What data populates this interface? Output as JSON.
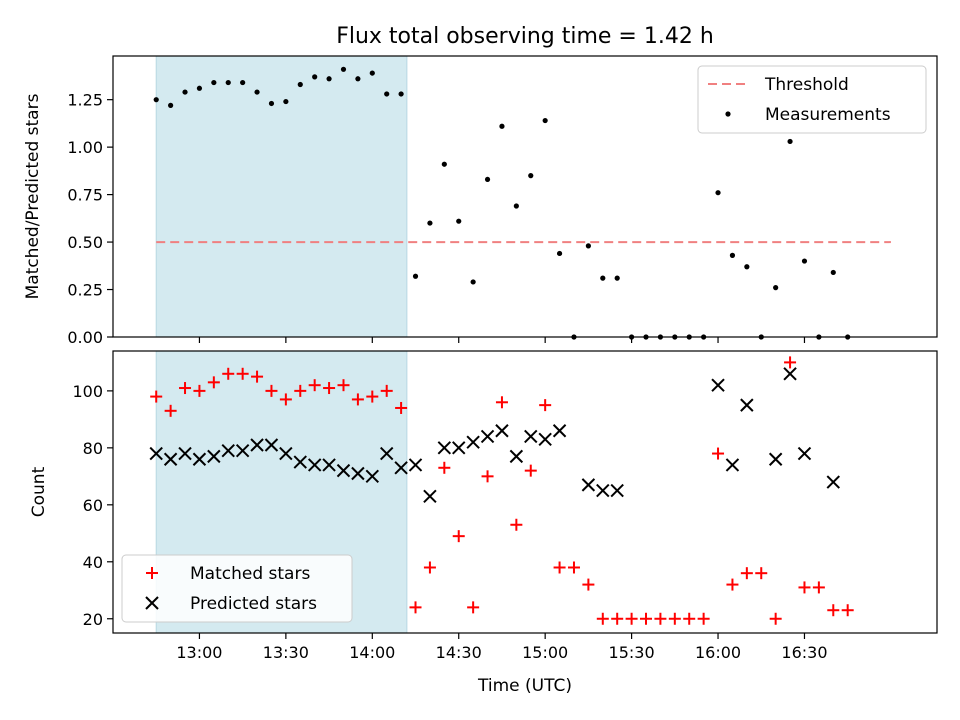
{
  "chart_data": [
    {
      "type": "scatter",
      "title": "Flux total observing time = 1.42 h",
      "xlabel": "",
      "ylabel": "Matched/Predicted stars",
      "xlim": [
        "12:30",
        "17:16"
      ],
      "ylim": [
        0,
        1.48
      ],
      "yticks": [
        "0.00",
        "0.25",
        "0.50",
        "0.75",
        "1.00",
        "1.25"
      ],
      "shaded_interval": [
        "12:45",
        "14:12"
      ],
      "shaded_color": "#d4eaf0",
      "threshold": {
        "name": "Threshold",
        "y": 0.5,
        "x_range": [
          "12:45",
          "17:00"
        ],
        "color": "#f08080"
      },
      "legend_position": "top-right",
      "series": [
        {
          "name": "Measurements",
          "color": "#000000",
          "marker": "dot",
          "x": [
            "12:45",
            "12:50",
            "12:55",
            "13:00",
            "13:05",
            "13:10",
            "13:15",
            "13:20",
            "13:25",
            "13:30",
            "13:35",
            "13:40",
            "13:45",
            "13:50",
            "13:55",
            "14:00",
            "14:05",
            "14:10",
            "14:15",
            "14:20",
            "14:25",
            "14:30",
            "14:35",
            "14:40",
            "14:45",
            "14:50",
            "14:55",
            "15:00",
            "15:05",
            "15:10",
            "15:15",
            "15:20",
            "15:25",
            "15:30",
            "15:35",
            "15:40",
            "15:45",
            "15:50",
            "15:55",
            "16:00",
            "16:05",
            "16:10",
            "16:15",
            "16:20",
            "16:25",
            "16:30",
            "16:35",
            "16:40",
            "16:45"
          ],
          "y": [
            1.25,
            1.22,
            1.29,
            1.31,
            1.34,
            1.34,
            1.34,
            1.29,
            1.23,
            1.24,
            1.33,
            1.37,
            1.36,
            1.41,
            1.36,
            1.39,
            1.28,
            1.28,
            0.32,
            0.6,
            0.91,
            0.61,
            0.29,
            0.83,
            1.11,
            0.69,
            0.85,
            1.14,
            0.44,
            0.0,
            0.48,
            0.31,
            0.31,
            0.0,
            0.0,
            0.0,
            0.0,
            0.0,
            0.0,
            0.76,
            0.43,
            0.37,
            0.0,
            0.26,
            1.03,
            0.4,
            0.0,
            0.34,
            0.0
          ]
        }
      ]
    },
    {
      "type": "scatter",
      "title": "",
      "xlabel": "Time (UTC)",
      "ylabel": "Count",
      "xlim": [
        "12:30",
        "17:16"
      ],
      "ylim": [
        15,
        114
      ],
      "yticks": [
        "20",
        "40",
        "60",
        "80",
        "100"
      ],
      "xticks": [
        "13:00",
        "13:30",
        "14:00",
        "14:30",
        "15:00",
        "15:30",
        "16:00",
        "16:30"
      ],
      "shaded_interval": [
        "12:45",
        "14:12"
      ],
      "legend_position": "lower-left",
      "series": [
        {
          "name": "Matched stars",
          "color": "#ff0000",
          "marker": "plus",
          "x": [
            "12:45",
            "12:50",
            "12:55",
            "13:00",
            "13:05",
            "13:10",
            "13:15",
            "13:20",
            "13:25",
            "13:30",
            "13:35",
            "13:40",
            "13:45",
            "13:50",
            "13:55",
            "14:00",
            "14:05",
            "14:10",
            "14:15",
            "14:20",
            "14:25",
            "14:30",
            "14:35",
            "14:40",
            "14:45",
            "14:50",
            "14:55",
            "15:00",
            "15:05",
            "15:10",
            "15:15",
            "15:20",
            "15:25",
            "15:30",
            "15:35",
            "15:40",
            "15:45",
            "15:50",
            "15:55",
            "16:00",
            "16:05",
            "16:10",
            "16:15",
            "16:20",
            "16:25",
            "16:30",
            "16:35",
            "16:40",
            "16:45"
          ],
          "y": [
            98,
            93,
            101,
            100,
            103,
            106,
            106,
            105,
            100,
            97,
            100,
            102,
            101,
            102,
            97,
            98,
            100,
            94,
            24,
            38,
            73,
            49,
            24,
            70,
            96,
            53,
            72,
            95,
            38,
            38,
            32,
            20,
            20,
            20,
            20,
            20,
            20,
            20,
            20,
            78,
            32,
            36,
            36,
            20,
            110,
            31,
            31,
            23,
            23
          ]
        },
        {
          "name": "Predicted stars",
          "color": "#000000",
          "marker": "x",
          "x": [
            "12:45",
            "12:50",
            "12:55",
            "13:00",
            "13:05",
            "13:10",
            "13:15",
            "13:20",
            "13:25",
            "13:30",
            "13:35",
            "13:40",
            "13:45",
            "13:50",
            "13:55",
            "14:00",
            "14:05",
            "14:10",
            "14:15",
            "14:20",
            "14:25",
            "14:30",
            "14:35",
            "14:40",
            "14:45",
            "14:50",
            "14:55",
            "15:00",
            "15:05",
            "15:15",
            "15:20",
            "15:25",
            "16:00",
            "16:05",
            "16:10",
            "16:20",
            "16:25",
            "16:30",
            "16:40"
          ],
          "y": [
            78,
            76,
            78,
            76,
            77,
            79,
            79,
            81,
            81,
            78,
            75,
            74,
            74,
            72,
            71,
            70,
            78,
            73,
            74,
            63,
            80,
            80,
            82,
            84,
            86,
            77,
            84,
            83,
            86,
            67,
            65,
            65,
            102,
            74,
            95,
            76,
            106,
            78,
            68
          ]
        }
      ]
    }
  ]
}
